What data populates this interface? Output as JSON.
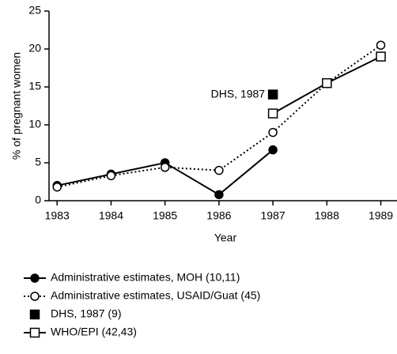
{
  "chart_data": {
    "type": "line",
    "x_label": "Year",
    "y_label": "% of pregnant women",
    "x": [
      1983,
      1984,
      1985,
      1986,
      1987,
      1988,
      1989
    ],
    "xlim": [
      1982.85,
      1989.3
    ],
    "xticks": [
      1983,
      1984,
      1985,
      1986,
      1987,
      1988,
      1989
    ],
    "ylim": [
      0,
      25
    ],
    "yticks": [
      0,
      5,
      10,
      15,
      20,
      25
    ],
    "series": [
      {
        "name": "Administrative estimates, MOH (10,11)",
        "color": "#000000",
        "line_style": "solid",
        "marker": "circle-filled",
        "values": [
          2,
          3.5,
          5,
          0.8,
          6.7,
          null,
          null
        ]
      },
      {
        "name": "Administrative estimates, USAID/Guat (45)",
        "color": "#000000",
        "line_style": "dotted",
        "marker": "circle-open",
        "values": [
          1.8,
          3.3,
          4.4,
          4,
          9,
          15.5,
          20.5
        ]
      },
      {
        "name": "DHS, 1987 (9)",
        "color": "#000000",
        "line_style": "none",
        "marker": "square-filled",
        "values": [
          null,
          null,
          null,
          null,
          14,
          null,
          null
        ]
      },
      {
        "name": "WHO/EPI (42,43)",
        "color": "#000000",
        "line_style": "solid",
        "marker": "square-open",
        "values": [
          null,
          null,
          null,
          null,
          11.5,
          15.5,
          19
        ]
      }
    ],
    "annotations": [
      {
        "text": "DHS, 1987",
        "x": 1987,
        "y": 14
      }
    ]
  }
}
